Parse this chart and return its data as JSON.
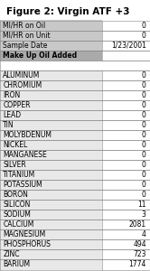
{
  "title": "Figure 2: Virgin ATF +3",
  "header_rows": [
    [
      "MI/HR on Oil",
      "0"
    ],
    [
      "MI/HR on Unit",
      "0"
    ],
    [
      "Sample Date",
      "1/23/2001"
    ],
    [
      "Make Up Oil Added",
      ""
    ]
  ],
  "data_rows": [
    [
      "ALUMINUM",
      "0"
    ],
    [
      "CHROMIUM",
      "0"
    ],
    [
      "IRON",
      "0"
    ],
    [
      "COPPER",
      "0"
    ],
    [
      "LEAD",
      "0"
    ],
    [
      "TIN",
      "0"
    ],
    [
      "MOLYBDENUM",
      "0"
    ],
    [
      "NICKEL",
      "0"
    ],
    [
      "MANGANESE",
      "0"
    ],
    [
      "SILVER",
      "0"
    ],
    [
      "TITANIUM",
      "0"
    ],
    [
      "POTASSIUM",
      "0"
    ],
    [
      "BORON",
      "0"
    ],
    [
      "SILICON",
      "11"
    ],
    [
      "SODIUM",
      "3"
    ],
    [
      "CALCIUM",
      "2081"
    ],
    [
      "MAGNESIUM",
      "4"
    ],
    [
      "PHOSPHORUS",
      "494"
    ],
    [
      "ZINC",
      "723"
    ],
    [
      "BARIUM",
      "1774"
    ]
  ],
  "header_bg": "#c8c8c8",
  "makeup_bg": "#aaaaaa",
  "data_bg": "#e8e8e8",
  "blank_bg": "#ffffff",
  "border_color": "#888888",
  "title_fontsize": 7.5,
  "cell_fontsize": 5.5,
  "col_split": 0.68,
  "figsize": [
    1.66,
    3.0
  ],
  "dpi": 100
}
